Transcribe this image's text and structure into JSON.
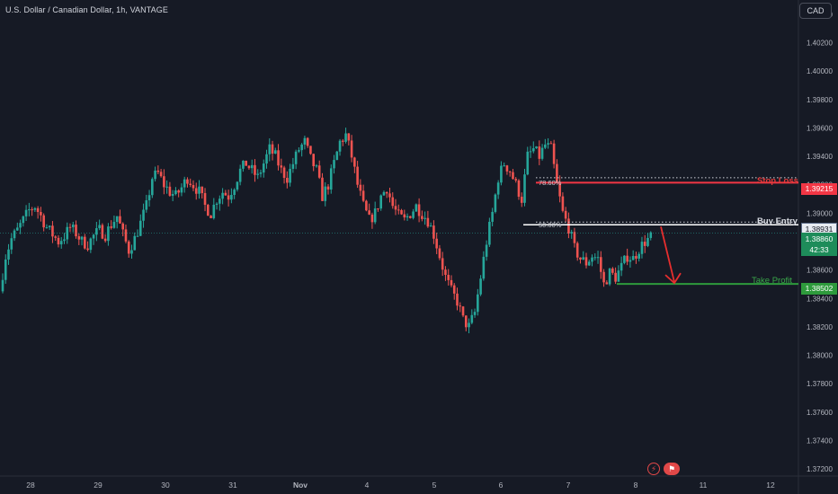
{
  "header": {
    "symbol_title": "U.S. Dollar / Canadian Dollar, 1h, VANTAGE",
    "currency_button": "CAD"
  },
  "price_axis": {
    "ticks": [
      "1.40400",
      "1.40200",
      "1.40000",
      "1.39800",
      "1.39600",
      "1.39400",
      "1.39200",
      "1.39000",
      "1.38800",
      "1.38600",
      "1.38400",
      "1.38200",
      "1.38000",
      "1.37800",
      "1.37600",
      "1.37400",
      "1.37200"
    ]
  },
  "time_axis": {
    "labels": [
      "28",
      "29",
      "30",
      "31",
      "Nov",
      "4",
      "5",
      "6",
      "7",
      "8",
      "11",
      "12"
    ]
  },
  "badges": {
    "stop_loss": "1.39215",
    "buy_entry": "1.38931",
    "last_price": "1.38860",
    "countdown": "42:33",
    "take_profit": "1.38502"
  },
  "annotations": {
    "stop_loss": "Stop Loss",
    "buy_entry": "Buy Entry",
    "take_profit": "Take Profit",
    "fib_top": "78.60%",
    "fib_mid": "50.00%"
  },
  "icons": {
    "left": "lightning-icon",
    "right": "flag-icon"
  },
  "colors": {
    "background": "#161a25",
    "up": "#26a69a",
    "down": "#ef5350",
    "stop_loss": "#f23645",
    "take_profit": "#2e9a3c",
    "entry_line": "#ffffff"
  },
  "chart_data": {
    "type": "candlestick",
    "instrument": "U.S. Dollar / Canadian Dollar",
    "timeframe": "1h",
    "ylim": [
      1.3715,
      1.4045
    ],
    "x_labels": [
      "28",
      "29",
      "30",
      "31",
      "Nov",
      "4",
      "5",
      "6",
      "7",
      "8",
      "11",
      "12"
    ],
    "levels": {
      "stop_loss": 1.39215,
      "buy_entry": 1.38931,
      "take_profit": 1.38502,
      "last_price": 1.3886
    },
    "price_path": [
      1.3845,
      1.387,
      1.3882,
      1.3888,
      1.3895,
      1.3902,
      1.3905,
      1.3898,
      1.389,
      1.3885,
      1.388,
      1.3884,
      1.389,
      1.3886,
      1.388,
      1.3878,
      1.3884,
      1.3888,
      1.3885,
      1.3892,
      1.3898,
      1.3885,
      1.3874,
      1.3882,
      1.3893,
      1.3905,
      1.3925,
      1.3928,
      1.392,
      1.3915,
      1.3912,
      1.3918,
      1.3925,
      1.392,
      1.3915,
      1.3905,
      1.39,
      1.391,
      1.3915,
      1.3912,
      1.392,
      1.393,
      1.3935,
      1.393,
      1.3925,
      1.3935,
      1.3945,
      1.394,
      1.393,
      1.3925,
      1.3935,
      1.3945,
      1.395,
      1.3938,
      1.393,
      1.3912,
      1.392,
      1.3935,
      1.395,
      1.3955,
      1.394,
      1.392,
      1.3905,
      1.3895,
      1.39,
      1.3912,
      1.3918,
      1.3905,
      1.3898,
      1.3895,
      1.39,
      1.3905,
      1.39,
      1.3895,
      1.3885,
      1.387,
      1.3855,
      1.3845,
      1.3838,
      1.3825,
      1.382,
      1.383,
      1.3855,
      1.388,
      1.39,
      1.3925,
      1.3935,
      1.393,
      1.392,
      1.391,
      1.394,
      1.3945,
      1.394,
      1.3948,
      1.3945,
      1.392,
      1.39,
      1.389,
      1.3875,
      1.3868,
      1.3865,
      1.387,
      1.3868,
      1.385,
      1.3858,
      1.3855,
      1.3862,
      1.387,
      1.3868,
      1.3875,
      1.388,
      1.3883
    ]
  }
}
